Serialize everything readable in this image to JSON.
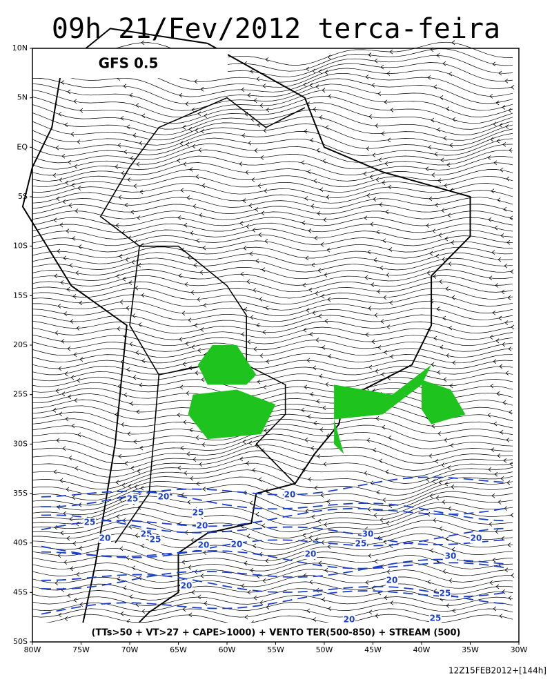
{
  "header": {
    "title": "09h 21/Fev/2012 terca-feira",
    "model": "GFS 0.5"
  },
  "lat_labels": [
    "10N",
    "5N",
    "EQ",
    "5S",
    "10S",
    "15S",
    "20S",
    "25S",
    "30S",
    "35S",
    "40S",
    "45S",
    "50S"
  ],
  "lon_labels": [
    "80W",
    "75W",
    "70W",
    "65W",
    "60W",
    "55W",
    "50W",
    "45W",
    "40W",
    "35W",
    "30W"
  ],
  "contour_labels": [
    "25",
    "20",
    "25",
    "25",
    "20",
    "20",
    "25",
    "25",
    "20",
    "20",
    "20",
    "30",
    "25",
    "20",
    "30",
    "20",
    "20",
    "25",
    "20",
    "25",
    "20"
  ],
  "caption": "(TTs>50 + VT>27 + CAPE>1000) + VENTO TER(500-850) + STREAM (500)",
  "footer": "12Z15FEB2012+[144h]"
}
